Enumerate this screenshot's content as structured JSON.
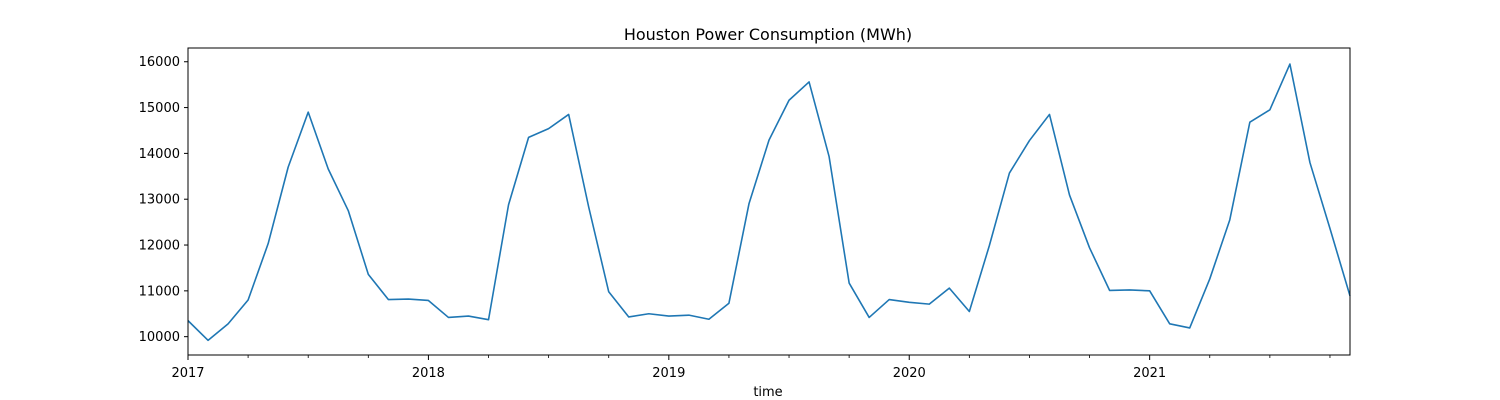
{
  "chart_data": {
    "type": "line",
    "title": "Houston Power Consumption (MWh)",
    "xlabel": "time",
    "ylabel": "",
    "x_major_ticks": [
      "2017",
      "2018",
      "2019",
      "2020",
      "2021"
    ],
    "y_ticks": [
      10000,
      11000,
      12000,
      13000,
      14000,
      15000,
      16000
    ],
    "ylim": [
      9600,
      16300
    ],
    "xlim": [
      "2017-01",
      "2021-11"
    ],
    "grid": false,
    "legend": "none",
    "series_color": "#1f77b4",
    "series": [
      {
        "x": [
          "2017-01",
          "2017-02",
          "2017-03",
          "2017-04",
          "2017-05",
          "2017-06",
          "2017-07",
          "2017-08",
          "2017-09",
          "2017-10",
          "2017-11",
          "2017-12",
          "2018-01",
          "2018-02",
          "2018-03",
          "2018-04",
          "2018-05",
          "2018-06",
          "2018-07",
          "2018-08",
          "2018-09",
          "2018-10",
          "2018-11",
          "2018-12",
          "2019-01",
          "2019-02",
          "2019-03",
          "2019-04",
          "2019-05",
          "2019-06",
          "2019-07",
          "2019-08",
          "2019-09",
          "2019-10",
          "2019-11",
          "2019-12",
          "2020-01",
          "2020-02",
          "2020-03",
          "2020-04",
          "2020-05",
          "2020-06",
          "2020-07",
          "2020-08",
          "2020-09",
          "2020-10",
          "2020-11",
          "2020-12",
          "2021-01",
          "2021-02",
          "2021-03",
          "2021-04",
          "2021-05",
          "2021-06",
          "2021-07",
          "2021-08",
          "2021-09",
          "2021-10",
          "2021-11"
        ],
        "values": [
          10350,
          9920,
          10280,
          10800,
          12030,
          13700,
          14900,
          13660,
          12750,
          11360,
          10810,
          10820,
          10790,
          10420,
          10450,
          10370,
          12880,
          14350,
          14540,
          14850,
          12830,
          10980,
          10430,
          10500,
          10450,
          10470,
          10380,
          10730,
          12900,
          14290,
          15160,
          15560,
          13930,
          11170,
          10420,
          10810,
          10750,
          10710,
          11060,
          10550,
          11990,
          13570,
          14280,
          14850,
          13090,
          11940,
          11010,
          11020,
          11000,
          10280,
          10190,
          11260,
          12550,
          14680,
          14950,
          15950,
          13800,
          12360,
          10890
        ]
      }
    ]
  }
}
